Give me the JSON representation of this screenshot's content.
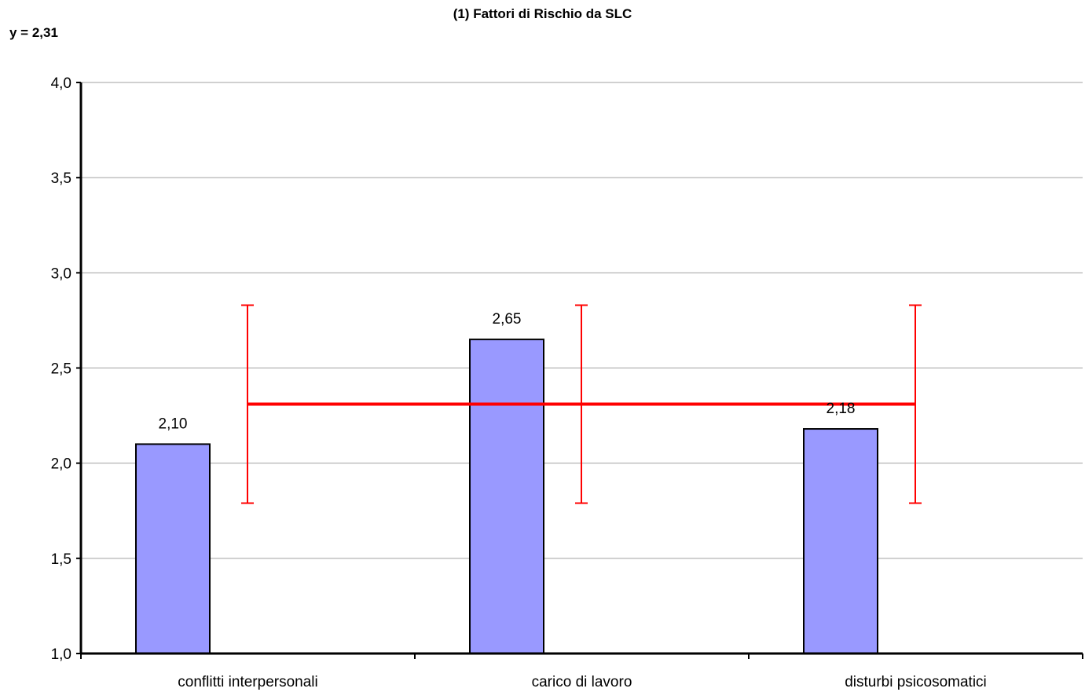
{
  "chart_data": {
    "type": "bar",
    "title": "(1) Fattori di Rischio da SLC",
    "reference_label": "y = 2,31",
    "categories": [
      "conflitti interpersonali",
      "carico di lavoro",
      "disturbi psicosomatici"
    ],
    "values": [
      2.1,
      2.65,
      2.18
    ],
    "value_labels": [
      "2,10",
      "2,65",
      "2,18"
    ],
    "reference_line": {
      "value": 2.31,
      "lower": 1.79,
      "upper": 2.83,
      "color": "#ff0000"
    },
    "ylim": [
      1.0,
      4.0
    ],
    "yticks": [
      1.0,
      1.5,
      2.0,
      2.5,
      3.0,
      3.5,
      4.0
    ],
    "ytick_labels": [
      "1,0",
      "1,5",
      "2,0",
      "2,5",
      "3,0",
      "3,5",
      "4,0"
    ],
    "grid": true,
    "bar_color": "#9999ff"
  }
}
